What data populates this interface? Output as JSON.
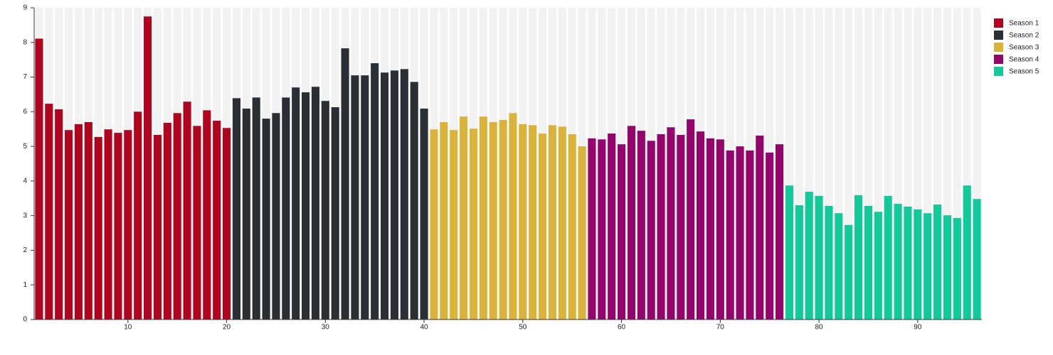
{
  "chart_data": {
    "type": "bar",
    "series": [
      {
        "name": "Season 1",
        "color": "#b0041f",
        "x": [
          1,
          2,
          3,
          4,
          5,
          6,
          7,
          8,
          9,
          10,
          11,
          12,
          13,
          14,
          15,
          16,
          17,
          18,
          19,
          20
        ],
        "values": [
          8.11,
          6.23,
          6.07,
          5.47,
          5.64,
          5.7,
          5.27,
          5.49,
          5.39,
          5.47,
          6.0,
          8.75,
          5.33,
          5.68,
          5.96,
          6.29,
          5.59,
          6.04,
          5.74,
          5.53
        ]
      },
      {
        "name": "Season 2",
        "color": "#2a2f36",
        "x": [
          21,
          22,
          23,
          24,
          25,
          26,
          27,
          28,
          29,
          30,
          31,
          32,
          33,
          34,
          35,
          36,
          37,
          38,
          39,
          40
        ],
        "values": [
          6.39,
          6.09,
          6.41,
          5.8,
          5.96,
          6.41,
          6.7,
          6.56,
          6.72,
          6.31,
          6.13,
          7.83,
          7.05,
          7.05,
          7.4,
          7.13,
          7.19,
          7.23,
          6.86,
          6.09
        ]
      },
      {
        "name": "Season 3",
        "color": "#dcb33a",
        "x": [
          41,
          42,
          43,
          44,
          45,
          46,
          47,
          48,
          49,
          50,
          51,
          52,
          53,
          54,
          55,
          56
        ],
        "values": [
          5.49,
          5.7,
          5.47,
          5.86,
          5.51,
          5.86,
          5.7,
          5.76,
          5.96,
          5.64,
          5.61,
          5.37,
          5.61,
          5.57,
          5.35,
          5.0
        ]
      },
      {
        "name": "Season 4",
        "color": "#94046c",
        "x": [
          57,
          58,
          59,
          60,
          61,
          62,
          63,
          64,
          65,
          66,
          67,
          68,
          69,
          70,
          71,
          72,
          73,
          74,
          75,
          76
        ],
        "values": [
          5.23,
          5.2,
          5.37,
          5.06,
          5.59,
          5.45,
          5.16,
          5.35,
          5.55,
          5.33,
          5.78,
          5.43,
          5.23,
          5.2,
          4.88,
          5.0,
          4.88,
          5.31,
          4.82,
          5.06
        ]
      },
      {
        "name": "Season 5",
        "color": "#12c99a",
        "x": [
          77,
          78,
          79,
          80,
          81,
          82,
          83,
          84,
          85,
          86,
          87,
          88,
          89,
          90,
          91,
          92,
          93,
          94,
          95,
          96
        ],
        "values": [
          3.87,
          3.3,
          3.69,
          3.57,
          3.28,
          3.07,
          2.73,
          3.59,
          3.28,
          3.11,
          3.57,
          3.34,
          3.26,
          3.18,
          3.07,
          3.32,
          3.01,
          2.93,
          3.87,
          3.48
        ]
      }
    ],
    "xlim": [
      0.5,
      96.5
    ],
    "xticks": [
      10,
      20,
      30,
      40,
      50,
      60,
      70,
      80,
      90
    ],
    "ylim": [
      0,
      9
    ],
    "yticks": [
      0,
      1,
      2,
      3,
      4,
      5,
      6,
      7,
      8,
      9
    ],
    "legend": "top-right"
  }
}
